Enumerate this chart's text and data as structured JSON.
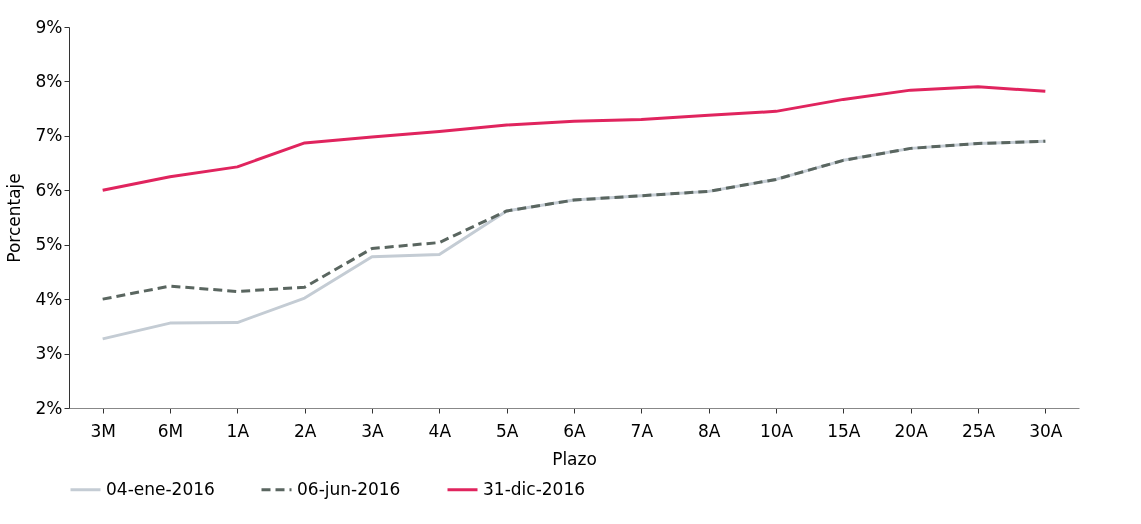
{
  "chart_data": {
    "type": "line",
    "xlabel": "Plazo",
    "ylabel": "Porcentaje",
    "categories": [
      "3M",
      "6M",
      "1A",
      "2A",
      "3A",
      "4A",
      "5A",
      "6A",
      "7A",
      "8A",
      "10A",
      "15A",
      "20A",
      "25A",
      "30A"
    ],
    "series": [
      {
        "name": "04-ene-2016",
        "color": "#c4ccd4",
        "line_style": "solid",
        "values": [
          3.27,
          3.56,
          3.57,
          4.02,
          4.78,
          4.82,
          5.62,
          5.82,
          5.9,
          5.98,
          6.2,
          6.55,
          6.77,
          6.86,
          6.9
        ]
      },
      {
        "name": "06-jun-2016",
        "color": "#5a6660",
        "line_style": "dashed",
        "values": [
          4.0,
          4.24,
          4.14,
          4.22,
          4.93,
          5.04,
          5.62,
          5.82,
          5.9,
          5.98,
          6.2,
          6.55,
          6.77,
          6.86,
          6.9
        ]
      },
      {
        "name": "31-dic-2016",
        "color": "#e0245e",
        "line_style": "solid",
        "values": [
          6.0,
          6.25,
          6.43,
          6.87,
          6.98,
          7.08,
          7.2,
          7.27,
          7.3,
          7.38,
          7.45,
          7.67,
          7.84,
          7.9,
          7.82
        ]
      }
    ],
    "ylim": [
      2,
      9
    ],
    "yticks": [
      {
        "value": 2,
        "label": "2%"
      },
      {
        "value": 3,
        "label": "3%"
      },
      {
        "value": 4,
        "label": "4%"
      },
      {
        "value": 5,
        "label": "5%"
      },
      {
        "value": 6,
        "label": "6%"
      },
      {
        "value": 7,
        "label": "7%"
      },
      {
        "value": 8,
        "label": "8%"
      },
      {
        "value": 9,
        "label": "9%"
      }
    ],
    "grid": false,
    "legend": "bottom",
    "marker": "none"
  }
}
